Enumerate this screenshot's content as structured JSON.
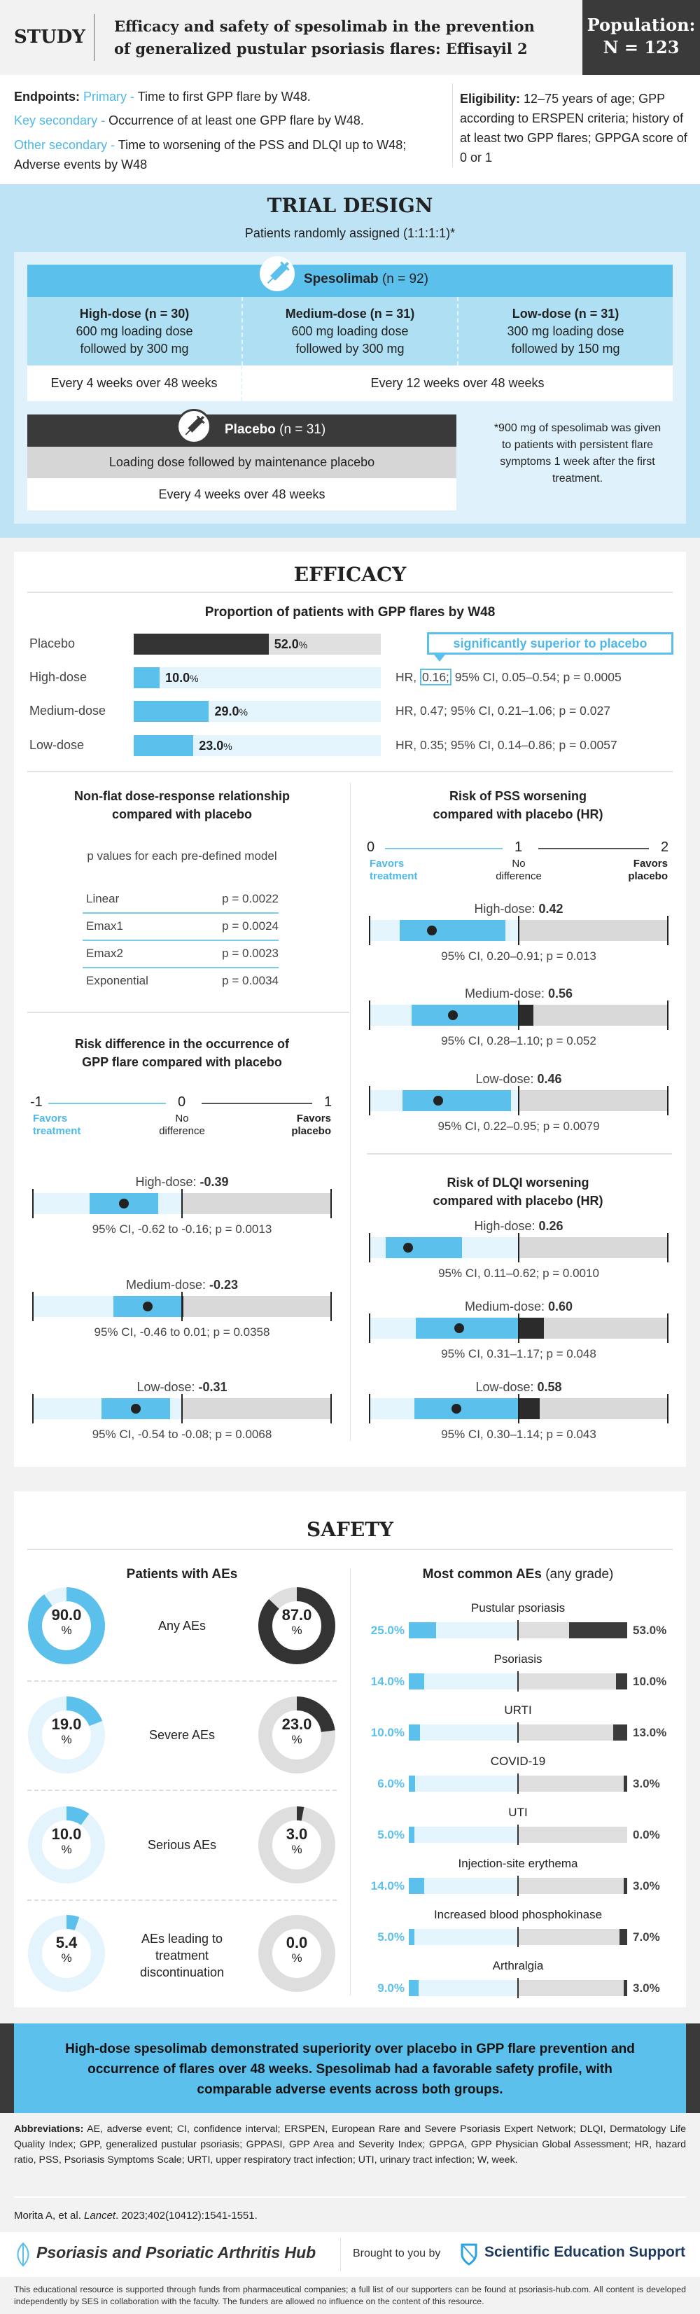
{
  "header": {
    "study_label": "STUDY",
    "title_line1": "Efficacy and safety of spesolimab in the prevention",
    "title_line2": "of generalized pustular psoriasis flares: Effisayil 2",
    "population_label": "Population:",
    "population_value": "N = 123"
  },
  "endpoints": {
    "label": "Endpoints:",
    "primary_label": "Primary -",
    "primary_text": "Time to first GPP flare by W48.",
    "key_label": "Key secondary -",
    "key_text": "Occurrence of at least one GPP flare by W48.",
    "other_label": "Other secondary -",
    "other_text": "Time to worsening of the PSS and DLQI up to W48; Adverse events by W48"
  },
  "eligibility": {
    "label": "Eligibility:",
    "text": "12–75 years of age; GPP according to ERSPEN criteria; history of at least two GPP flares; GPPGA score of 0 or 1"
  },
  "trial_design": {
    "title": "TRIAL DESIGN",
    "subtitle": "Patients randomly assigned (1:1:1:1)*",
    "spesolimab_name": "Spesolimab",
    "spesolimab_n": "(n = 92)",
    "arms": [
      {
        "name": "High-dose (n = 30)",
        "line1": "600 mg loading dose",
        "line2": "followed by 300 mg"
      },
      {
        "name": "Medium-dose (n = 31)",
        "line1": "600 mg loading dose",
        "line2": "followed by 300 mg"
      },
      {
        "name": "Low-dose (n = 31)",
        "line1": "300 mg loading dose",
        "line2": "followed by 150 mg"
      }
    ],
    "schedule_high": "Every 4 weeks over 48 weeks",
    "schedule_other": "Every 12 weeks over 48 weeks",
    "placebo_name": "Placebo",
    "placebo_n": "(n = 31)",
    "placebo_dosing": "Loading dose followed by maintenance placebo",
    "placebo_schedule": "Every 4 weeks over 48 weeks",
    "footnote": "*900 mg of spesolimab was given to patients with persistent flare symptoms 1 week after the first treatment."
  },
  "efficacy": {
    "title": "EFFICACY",
    "flares": {
      "title": "Proportion of patients with GPP flares by W48",
      "callout": "significantly superior to placebo",
      "rows": [
        {
          "label": "Placebo",
          "value": 52.0,
          "display": "52.0",
          "pct": "%",
          "hr_pre": "",
          "hr_box": "",
          "hr_post": ""
        },
        {
          "label": "High-dose",
          "value": 10.0,
          "display": "10.0",
          "pct": "%",
          "hr_pre": "HR, ",
          "hr_box": "0.16;",
          "hr_post": " 95% CI, 0.05–0.54; p = 0.0005"
        },
        {
          "label": "Medium-dose",
          "value": 29.0,
          "display": "29.0",
          "pct": "%",
          "hr_pre": "HR, 0.47; 95% CI, 0.21–1.06; p = 0.027",
          "hr_box": "",
          "hr_post": ""
        },
        {
          "label": "Low-dose",
          "value": 23.0,
          "display": "23.0",
          "pct": "%",
          "hr_pre": "HR, 0.35; 95% CI, 0.14–0.86; p = 0.0057",
          "hr_box": "",
          "hr_post": ""
        }
      ]
    },
    "dose_response": {
      "title_line1": "Non-flat dose-response relationship",
      "title_line2": "compared with placebo",
      "subtitle": "p values for each pre-defined model",
      "rows": [
        {
          "model": "Linear",
          "p": "p = 0.0022"
        },
        {
          "model": "Emax1",
          "p": "p = 0.0024"
        },
        {
          "model": "Emax2",
          "p": "p = 0.0023"
        },
        {
          "model": "Exponential",
          "p": "p = 0.0034"
        }
      ]
    },
    "risk_diff": {
      "title_line1": "Risk difference in the occurrence of",
      "title_line2": "GPP flare compared with placebo",
      "min": -1,
      "ref": 0,
      "max": 1,
      "min_label": "-1",
      "ref_label": "0",
      "max_label": "1",
      "left_text_1": "Favors",
      "left_text_2": "treatment",
      "mid_text_1": "No",
      "mid_text_2": "difference",
      "right_text_1": "Favors",
      "right_text_2": "placebo",
      "rows": [
        {
          "label": "High-dose: ",
          "est_label": "-0.39",
          "estimate": -0.39,
          "lo": -0.62,
          "hi": -0.16,
          "ci_text": "95% CI, -0.62 to -0.16; p = 0.0013"
        },
        {
          "label": "Medium-dose: ",
          "est_label": "-0.23",
          "estimate": -0.23,
          "lo": -0.46,
          "hi": 0.01,
          "ci_text": "95% CI, -0.46 to 0.01; p = 0.0358"
        },
        {
          "label": "Low-dose: ",
          "est_label": "-0.31",
          "estimate": -0.31,
          "lo": -0.54,
          "hi": -0.08,
          "ci_text": "95% CI, -0.54 to -0.08; p = 0.0068"
        }
      ]
    },
    "pss": {
      "title_line1": "Risk of PSS worsening",
      "title_line2": "compared with placebo (HR)",
      "min": 0,
      "ref": 1,
      "max": 2,
      "min_label": "0",
      "ref_label": "1",
      "max_label": "2",
      "left_text_1": "Favors",
      "left_text_2": "treatment",
      "mid_text_1": "No",
      "mid_text_2": "difference",
      "right_text_1": "Favors",
      "right_text_2": "placebo",
      "rows": [
        {
          "label": "High-dose: ",
          "est_label": "0.42",
          "estimate": 0.42,
          "lo": 0.2,
          "hi": 0.91,
          "ci_text": "95% CI, 0.20–0.91; p = 0.013"
        },
        {
          "label": "Medium-dose: ",
          "est_label": "0.56",
          "estimate": 0.56,
          "lo": 0.28,
          "hi": 1.1,
          "ci_text": "95% CI, 0.28–1.10; p = 0.052"
        },
        {
          "label": "Low-dose: ",
          "est_label": "0.46",
          "estimate": 0.46,
          "lo": 0.22,
          "hi": 0.95,
          "ci_text": "95% CI, 0.22–0.95; p = 0.0079"
        }
      ]
    },
    "dlqi": {
      "title_line1": "Risk of DLQI worsening",
      "title_line2": "compared with placebo (HR)",
      "min": 0,
      "ref": 1,
      "max": 2,
      "rows": [
        {
          "label": "High-dose: ",
          "est_label": "0.26",
          "estimate": 0.26,
          "lo": 0.11,
          "hi": 0.62,
          "ci_text": "95% CI, 0.11–0.62; p = 0.0010"
        },
        {
          "label": "Medium-dose: ",
          "est_label": "0.60",
          "estimate": 0.6,
          "lo": 0.31,
          "hi": 1.17,
          "ci_text": "95% CI, 0.31–1.17; p = 0.048"
        },
        {
          "label": "Low-dose: ",
          "est_label": "0.58",
          "estimate": 0.58,
          "lo": 0.3,
          "hi": 1.14,
          "ci_text": "95% CI, 0.30–1.14; p = 0.043"
        }
      ]
    }
  },
  "safety": {
    "title": "SAFETY",
    "patients": {
      "title": "Patients with AEs",
      "pct": "%",
      "rows": [
        {
          "label": "Any AEs",
          "speso": 90.0,
          "speso_label": "90.0",
          "placebo": 87.0,
          "placebo_label": "87.0"
        },
        {
          "label": "Severe AEs",
          "speso": 19.0,
          "speso_label": "19.0",
          "placebo": 23.0,
          "placebo_label": "23.0"
        },
        {
          "label": "Serious AEs",
          "speso": 10.0,
          "speso_label": "10.0",
          "placebo": 3.0,
          "placebo_label": "3.0"
        },
        {
          "label": "AEs leading to treatment discontinuation",
          "speso": 5.4,
          "speso_label": "5.4",
          "placebo": 0.0,
          "placebo_label": "0.0"
        }
      ]
    },
    "common": {
      "title_bold": "Most common AEs",
      "title_rest": " (any grade)",
      "rows": [
        {
          "name": "Pustular psoriasis",
          "speso": 25.0,
          "speso_label": "25.0%",
          "placebo": 53.0,
          "placebo_label": "53.0%"
        },
        {
          "name": "Psoriasis",
          "speso": 14.0,
          "speso_label": "14.0%",
          "placebo": 10.0,
          "placebo_label": "10.0%"
        },
        {
          "name": "URTI",
          "speso": 10.0,
          "speso_label": "10.0%",
          "placebo": 13.0,
          "placebo_label": "13.0%"
        },
        {
          "name": "COVID-19",
          "speso": 6.0,
          "speso_label": "6.0%",
          "placebo": 3.0,
          "placebo_label": "3.0%"
        },
        {
          "name": "UTI",
          "speso": 5.0,
          "speso_label": "5.0%",
          "placebo": 0.0,
          "placebo_label": "0.0%"
        },
        {
          "name": "Injection-site erythema",
          "speso": 14.0,
          "speso_label": "14.0%",
          "placebo": 3.0,
          "placebo_label": "3.0%"
        },
        {
          "name": "Increased blood phosphokinase",
          "speso": 5.0,
          "speso_label": "5.0%",
          "placebo": 7.0,
          "placebo_label": "7.0%"
        },
        {
          "name": "Arthralgia",
          "speso": 9.0,
          "speso_label": "9.0%",
          "placebo": 3.0,
          "placebo_label": "3.0%"
        }
      ]
    }
  },
  "conclusion": "High-dose spesolimab demonstrated superiority over placebo in GPP flare prevention and occurrence of flares over 48 weeks. Spesolimab had a favorable safety profile, with comparable adverse events across both groups.",
  "abbreviations": {
    "label": "Abbreviations:",
    "text": " AE, adverse event; CI, confidence interval; ERSPEN, European Rare and Severe Psoriasis Expert Network; DLQI, Dermatology Life Quality Index; GPP, generalized pustular psoriasis; GPPASI, GPP Area and Severity Index; GPPGA, GPP Physician Global Assessment; HR, hazard ratio, PSS, Psoriasis Symptoms Scale; URTI, upper respiratory tract infection; UTI, urinary tract infection; W, week."
  },
  "reference": {
    "authors": "Morita A, et al. ",
    "journal": "Lancet",
    "details": ". 2023;402(10412):1541-1551."
  },
  "footer": {
    "hub_name": "Psoriasis and Psoriatic Arthritis Hub",
    "brought_by": "Brought to you by",
    "ses_name": "Scientific Education Support",
    "disclaimer": "This educational resource is supported through funds from pharmaceutical companies; a full list of our supporters can be found at psoriasis-hub.com. All content is developed independently by SES in collaboration with the faculty. The funders are allowed no influence on the content of this resource."
  },
  "colors": {
    "blue": "#5bc0eb",
    "light_blue": "#e3f4fc",
    "dark": "#333333",
    "gray": "#d9d9d9",
    "trial_bg": "#bde3f5"
  }
}
